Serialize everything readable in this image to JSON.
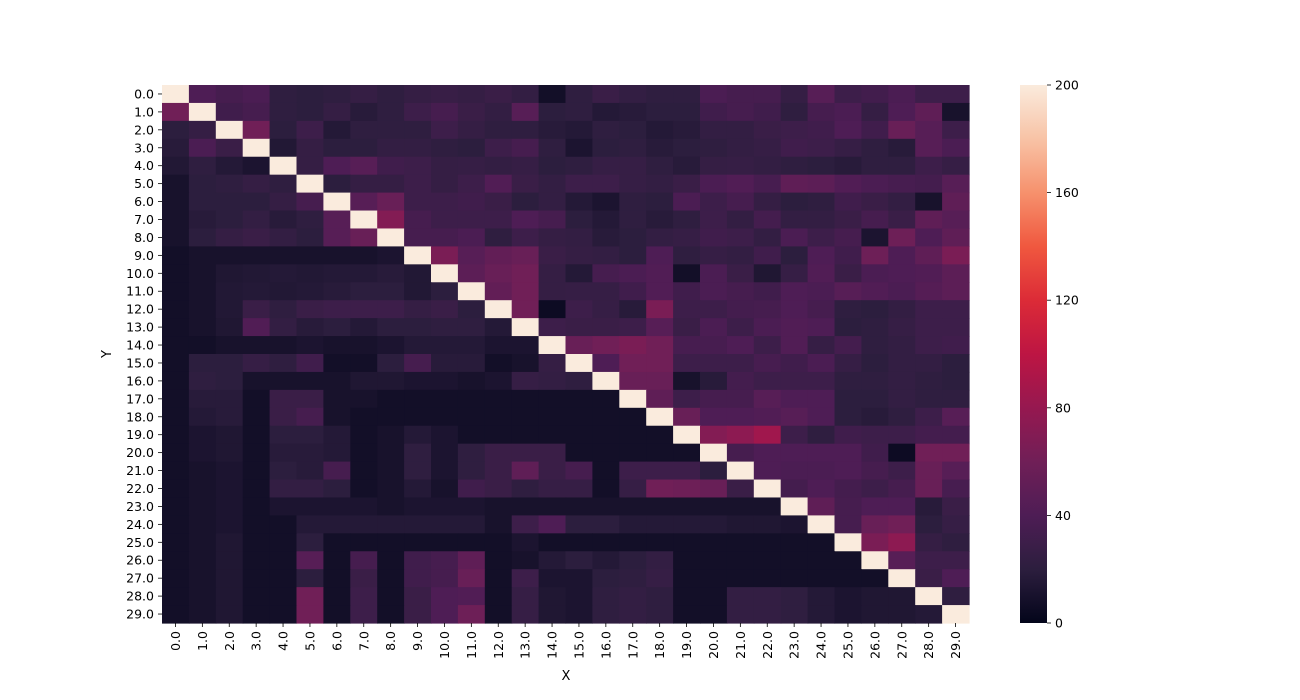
{
  "chart_data": {
    "type": "heatmap",
    "title": "",
    "xlabel": "X",
    "ylabel": "Y",
    "x_categories": [
      "0.0",
      "1.0",
      "2.0",
      "3.0",
      "4.0",
      "5.0",
      "6.0",
      "7.0",
      "8.0",
      "9.0",
      "10.0",
      "11.0",
      "12.0",
      "13.0",
      "14.0",
      "15.0",
      "16.0",
      "17.0",
      "18.0",
      "19.0",
      "20.0",
      "21.0",
      "22.0",
      "23.0",
      "24.0",
      "25.0",
      "26.0",
      "27.0",
      "28.0",
      "29.0"
    ],
    "y_categories": [
      "0.0",
      "1.0",
      "2.0",
      "3.0",
      "4.0",
      "5.0",
      "6.0",
      "7.0",
      "8.0",
      "9.0",
      "10.0",
      "11.0",
      "12.0",
      "13.0",
      "14.0",
      "15.0",
      "16.0",
      "17.0",
      "18.0",
      "19.0",
      "20.0",
      "21.0",
      "22.0",
      "23.0",
      "24.0",
      "25.0",
      "26.0",
      "27.0",
      "28.0",
      "29.0"
    ],
    "colorbar": {
      "min": 0,
      "max": 200,
      "ticks": [
        "0",
        "40",
        "80",
        "120",
        "160",
        "200"
      ]
    },
    "values": [
      [
        200,
        40,
        35,
        38,
        22,
        20,
        22,
        25,
        22,
        25,
        27,
        25,
        28,
        24,
        8,
        22,
        28,
        24,
        22,
        22,
        38,
        35,
        35,
        25,
        45,
        30,
        33,
        38,
        30,
        30
      ],
      [
        60,
        200,
        32,
        35,
        22,
        20,
        25,
        18,
        22,
        30,
        35,
        28,
        24,
        45,
        20,
        22,
        16,
        18,
        20,
        20,
        32,
        35,
        32,
        22,
        35,
        38,
        25,
        40,
        50,
        10
      ],
      [
        20,
        25,
        200,
        60,
        20,
        30,
        16,
        22,
        22,
        22,
        30,
        25,
        22,
        22,
        18,
        16,
        22,
        20,
        16,
        18,
        24,
        24,
        28,
        30,
        32,
        40,
        32,
        55,
        45,
        30
      ],
      [
        18,
        38,
        28,
        200,
        15,
        25,
        20,
        20,
        24,
        24,
        22,
        20,
        30,
        35,
        22,
        12,
        20,
        22,
        18,
        20,
        22,
        24,
        26,
        32,
        30,
        26,
        22,
        18,
        45,
        38
      ],
      [
        15,
        22,
        16,
        12,
        200,
        25,
        40,
        45,
        32,
        30,
        25,
        26,
        24,
        26,
        20,
        22,
        26,
        26,
        22,
        18,
        25,
        26,
        24,
        22,
        20,
        18,
        22,
        22,
        30,
        26
      ],
      [
        10,
        20,
        22,
        25,
        22,
        200,
        20,
        25,
        25,
        30,
        25,
        30,
        42,
        28,
        24,
        30,
        30,
        26,
        24,
        28,
        38,
        42,
        36,
        50,
        48,
        42,
        38,
        36,
        34,
        45
      ],
      [
        10,
        20,
        20,
        20,
        25,
        35,
        200,
        45,
        55,
        30,
        30,
        32,
        28,
        20,
        24,
        16,
        12,
        22,
        20,
        38,
        30,
        35,
        25,
        20,
        22,
        32,
        28,
        24,
        10,
        50
      ],
      [
        10,
        18,
        20,
        24,
        18,
        22,
        45,
        200,
        70,
        35,
        30,
        30,
        30,
        40,
        35,
        20,
        16,
        22,
        18,
        22,
        30,
        24,
        34,
        24,
        24,
        28,
        35,
        28,
        50,
        45
      ],
      [
        10,
        20,
        25,
        28,
        24,
        20,
        45,
        55,
        200,
        35,
        35,
        38,
        22,
        30,
        25,
        24,
        18,
        20,
        24,
        26,
        32,
        30,
        24,
        38,
        30,
        35,
        12,
        58,
        40,
        50
      ],
      [
        8,
        10,
        10,
        10,
        10,
        10,
        10,
        10,
        12,
        200,
        65,
        45,
        52,
        55,
        28,
        25,
        24,
        20,
        40,
        22,
        26,
        24,
        32,
        20,
        40,
        32,
        58,
        40,
        50,
        65
      ],
      [
        8,
        10,
        14,
        15,
        16,
        15,
        16,
        16,
        18,
        15,
        200,
        48,
        55,
        60,
        25,
        16,
        35,
        38,
        42,
        8,
        38,
        28,
        14,
        26,
        42,
        28,
        38,
        40,
        42,
        48
      ],
      [
        8,
        10,
        15,
        16,
        15,
        16,
        18,
        20,
        20,
        15,
        20,
        200,
        52,
        60,
        25,
        26,
        26,
        32,
        42,
        32,
        38,
        35,
        32,
        40,
        38,
        45,
        42,
        38,
        44,
        48
      ],
      [
        8,
        10,
        15,
        28,
        22,
        28,
        30,
        30,
        30,
        25,
        28,
        20,
        200,
        60,
        5,
        30,
        26,
        18,
        65,
        30,
        30,
        34,
        35,
        40,
        35,
        22,
        20,
        24,
        30,
        30
      ],
      [
        8,
        10,
        14,
        42,
        24,
        18,
        20,
        16,
        20,
        20,
        22,
        22,
        16,
        200,
        30,
        28,
        28,
        30,
        45,
        28,
        38,
        30,
        38,
        42,
        40,
        20,
        22,
        26,
        30,
        30
      ],
      [
        8,
        8,
        10,
        10,
        10,
        12,
        10,
        10,
        12,
        16,
        16,
        16,
        12,
        12,
        200,
        55,
        60,
        65,
        60,
        36,
        36,
        40,
        30,
        42,
        26,
        34,
        22,
        24,
        30,
        32
      ],
      [
        8,
        20,
        20,
        26,
        22,
        32,
        8,
        8,
        20,
        35,
        18,
        18,
        8,
        10,
        25,
        200,
        40,
        60,
        60,
        30,
        30,
        30,
        36,
        32,
        38,
        26,
        20,
        24,
        24,
        20
      ],
      [
        8,
        22,
        20,
        10,
        10,
        10,
        10,
        14,
        14,
        12,
        12,
        10,
        12,
        26,
        24,
        22,
        200,
        55,
        55,
        10,
        18,
        34,
        30,
        30,
        30,
        22,
        22,
        24,
        22,
        20
      ],
      [
        8,
        18,
        18,
        8,
        28,
        28,
        10,
        10,
        8,
        8,
        8,
        8,
        8,
        8,
        8,
        8,
        8,
        200,
        50,
        30,
        35,
        35,
        45,
        40,
        40,
        20,
        20,
        24,
        22,
        22
      ],
      [
        8,
        16,
        18,
        8,
        28,
        35,
        10,
        8,
        8,
        8,
        8,
        8,
        8,
        8,
        8,
        8,
        8,
        8,
        200,
        55,
        40,
        40,
        42,
        45,
        40,
        20,
        18,
        22,
        30,
        45
      ],
      [
        8,
        12,
        14,
        8,
        20,
        20,
        16,
        8,
        10,
        16,
        12,
        8,
        8,
        8,
        8,
        8,
        8,
        8,
        8,
        200,
        70,
        75,
        85,
        30,
        22,
        32,
        30,
        30,
        34,
        34
      ],
      [
        8,
        12,
        14,
        8,
        18,
        18,
        16,
        8,
        10,
        22,
        12,
        22,
        28,
        28,
        28,
        8,
        8,
        8,
        8,
        8,
        200,
        35,
        40,
        40,
        40,
        40,
        32,
        5,
        60,
        60
      ],
      [
        8,
        10,
        12,
        8,
        20,
        18,
        35,
        8,
        10,
        22,
        12,
        22,
        28,
        50,
        28,
        35,
        8,
        30,
        30,
        30,
        20,
        200,
        40,
        38,
        38,
        40,
        35,
        30,
        55,
        45
      ],
      [
        8,
        10,
        12,
        8,
        24,
        24,
        20,
        8,
        10,
        16,
        10,
        32,
        28,
        22,
        26,
        26,
        8,
        26,
        60,
        58,
        55,
        28,
        200,
        34,
        40,
        34,
        30,
        35,
        55,
        36
      ],
      [
        8,
        10,
        12,
        8,
        12,
        12,
        12,
        12,
        10,
        12,
        12,
        12,
        10,
        10,
        10,
        10,
        10,
        10,
        10,
        10,
        10,
        10,
        10,
        200,
        50,
        35,
        40,
        40,
        18,
        28
      ],
      [
        8,
        10,
        12,
        8,
        8,
        16,
        16,
        16,
        16,
        16,
        16,
        16,
        10,
        30,
        40,
        20,
        20,
        16,
        16,
        16,
        16,
        14,
        14,
        12,
        200,
        35,
        55,
        60,
        20,
        26
      ],
      [
        8,
        10,
        14,
        8,
        8,
        20,
        8,
        8,
        8,
        8,
        8,
        8,
        8,
        12,
        8,
        8,
        8,
        8,
        8,
        8,
        8,
        8,
        8,
        8,
        8,
        200,
        65,
        75,
        25,
        22
      ],
      [
        8,
        10,
        14,
        8,
        8,
        45,
        8,
        35,
        8,
        32,
        35,
        50,
        8,
        10,
        16,
        20,
        16,
        20,
        24,
        8,
        8,
        8,
        8,
        8,
        8,
        8,
        200,
        45,
        30,
        30
      ],
      [
        8,
        10,
        14,
        8,
        8,
        20,
        8,
        28,
        8,
        32,
        35,
        55,
        8,
        30,
        12,
        12,
        20,
        22,
        26,
        8,
        8,
        8,
        8,
        8,
        8,
        8,
        8,
        200,
        28,
        40
      ],
      [
        8,
        10,
        14,
        8,
        8,
        60,
        8,
        30,
        8,
        28,
        40,
        42,
        8,
        26,
        14,
        12,
        22,
        24,
        22,
        8,
        8,
        24,
        24,
        22,
        16,
        12,
        14,
        14,
        200,
        22
      ],
      [
        8,
        10,
        14,
        8,
        8,
        60,
        8,
        30,
        8,
        28,
        40,
        58,
        8,
        26,
        14,
        12,
        22,
        24,
        22,
        8,
        8,
        24,
        24,
        22,
        16,
        12,
        14,
        14,
        16,
        200
      ]
    ]
  }
}
